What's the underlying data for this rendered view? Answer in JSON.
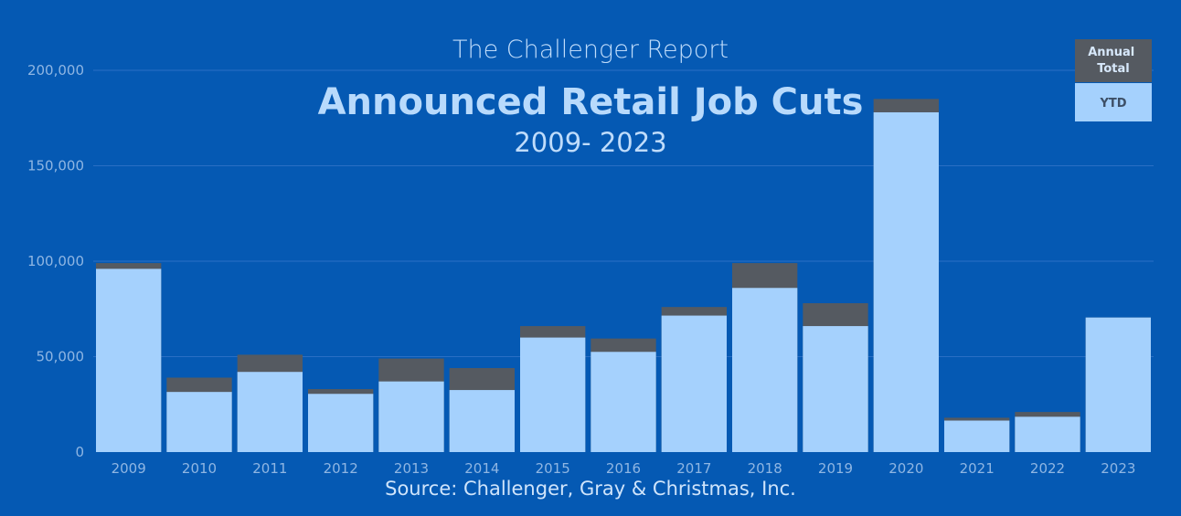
{
  "chart_data": {
    "type": "bar",
    "stacked": "overlay",
    "super_title": "The Challenger Report",
    "title": "Announced Retail Job Cuts",
    "subtitle": "2009- 2023",
    "source": "Source: Challenger, Gray & Christmas, Inc.",
    "categories": [
      "2009",
      "2010",
      "2011",
      "2012",
      "2013",
      "2014",
      "2015",
      "2016",
      "2017",
      "2018",
      "2019",
      "2020",
      "2021",
      "2022",
      "2023"
    ],
    "series": [
      {
        "name": "Annual Total",
        "color": "#555a61",
        "values": [
          99000,
          39000,
          51000,
          33000,
          49000,
          44000,
          66000,
          59500,
          76000,
          99000,
          78000,
          185000,
          18000,
          21000,
          70500
        ]
      },
      {
        "name": "YTD",
        "color": "#a5d1fd",
        "values": [
          96000,
          31500,
          42000,
          30500,
          37000,
          32500,
          60000,
          52500,
          71500,
          86000,
          66000,
          178000,
          16500,
          18500,
          70500
        ]
      }
    ],
    "ylim": [
      0,
      200000
    ],
    "yticks": [
      "0",
      "50,000",
      "100,000",
      "150,000",
      "200,000"
    ],
    "ytick_values": [
      0,
      50000,
      100000,
      150000,
      200000
    ],
    "grid": true,
    "legend_position": "top-right"
  }
}
